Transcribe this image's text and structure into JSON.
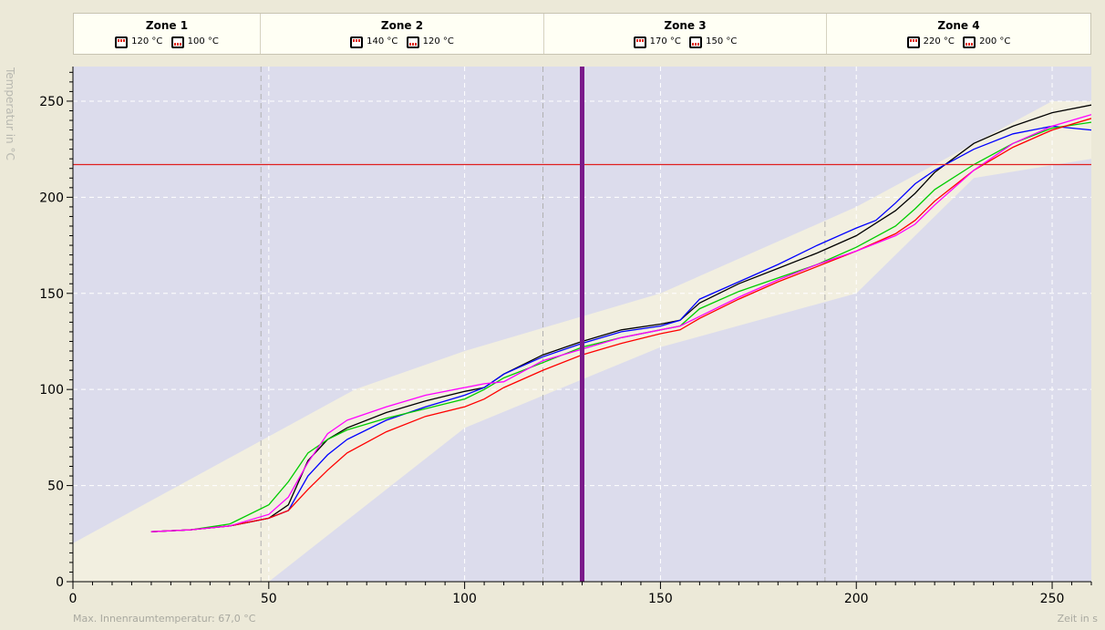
{
  "zones": [
    {
      "title": "Zone 1",
      "top_temp": "120 °C",
      "bottom_temp": "100 °C"
    },
    {
      "title": "Zone 2",
      "top_temp": "140 °C",
      "bottom_temp": "120 °C"
    },
    {
      "title": "Zone 3",
      "top_temp": "170 °C",
      "bottom_temp": "150 °C"
    },
    {
      "title": "Zone 4",
      "top_temp": "220 °C",
      "bottom_temp": "200 °C"
    }
  ],
  "footer": {
    "max_temp_label": "Max. Innenraumtemperatur: 67,0 °C",
    "x_axis_label": "Zeit in s"
  },
  "colors": {
    "plot_background": "#dcdcec",
    "process_window": "#f2efe0",
    "limit_line": "#e02020",
    "cursor": "#7a1a8a"
  },
  "chart_data": {
    "type": "line",
    "xlabel": "Zeit in s",
    "ylabel": "Temperatur in °C",
    "xlim": [
      0,
      260
    ],
    "ylim": [
      0,
      268
    ],
    "x_ticks": [
      0,
      50,
      100,
      150,
      200,
      250
    ],
    "y_ticks": [
      0,
      50,
      100,
      150,
      200,
      250
    ],
    "grid": true,
    "zone_boundaries": [
      48,
      120,
      192
    ],
    "cursor_x": 130,
    "limit_line_y": 217,
    "process_window": {
      "upper": [
        [
          0,
          20
        ],
        [
          72,
          100
        ],
        [
          100,
          120
        ],
        [
          150,
          150
        ],
        [
          200,
          195
        ],
        [
          250,
          250
        ],
        [
          260,
          250
        ]
      ],
      "lower": [
        [
          50,
          0
        ],
        [
          100,
          80
        ],
        [
          150,
          122
        ],
        [
          200,
          150
        ],
        [
          230,
          210
        ],
        [
          260,
          220
        ]
      ]
    },
    "series": [
      {
        "color": "#000000",
        "points": [
          [
            20,
            26
          ],
          [
            30,
            27
          ],
          [
            40,
            29
          ],
          [
            50,
            33
          ],
          [
            55,
            40
          ],
          [
            60,
            63
          ],
          [
            65,
            74
          ],
          [
            70,
            80
          ],
          [
            80,
            88
          ],
          [
            90,
            94
          ],
          [
            100,
            99
          ],
          [
            105,
            101
          ],
          [
            110,
            108
          ],
          [
            120,
            118
          ],
          [
            130,
            125
          ],
          [
            140,
            131
          ],
          [
            150,
            134
          ],
          [
            155,
            136
          ],
          [
            160,
            145
          ],
          [
            170,
            155
          ],
          [
            180,
            163
          ],
          [
            190,
            171
          ],
          [
            200,
            180
          ],
          [
            210,
            193
          ],
          [
            215,
            202
          ],
          [
            220,
            213
          ],
          [
            230,
            228
          ],
          [
            240,
            237
          ],
          [
            250,
            244
          ],
          [
            260,
            248
          ]
        ]
      },
      {
        "color": "#0000ff",
        "points": [
          [
            20,
            26
          ],
          [
            30,
            27
          ],
          [
            40,
            29
          ],
          [
            50,
            33
          ],
          [
            55,
            37
          ],
          [
            60,
            55
          ],
          [
            65,
            66
          ],
          [
            70,
            74
          ],
          [
            80,
            84
          ],
          [
            90,
            91
          ],
          [
            100,
            97
          ],
          [
            105,
            101
          ],
          [
            110,
            108
          ],
          [
            120,
            117
          ],
          [
            130,
            124
          ],
          [
            140,
            130
          ],
          [
            150,
            133
          ],
          [
            155,
            136
          ],
          [
            160,
            147
          ],
          [
            170,
            156
          ],
          [
            180,
            165
          ],
          [
            190,
            175
          ],
          [
            200,
            184
          ],
          [
            205,
            188
          ],
          [
            210,
            197
          ],
          [
            215,
            207
          ],
          [
            220,
            214
          ],
          [
            230,
            225
          ],
          [
            240,
            233
          ],
          [
            250,
            237
          ],
          [
            260,
            235
          ]
        ]
      },
      {
        "color": "#00cc00",
        "points": [
          [
            20,
            26
          ],
          [
            30,
            27
          ],
          [
            40,
            30
          ],
          [
            50,
            40
          ],
          [
            55,
            52
          ],
          [
            60,
            67
          ],
          [
            65,
            74
          ],
          [
            70,
            79
          ],
          [
            80,
            85
          ],
          [
            90,
            90
          ],
          [
            100,
            95
          ],
          [
            105,
            100
          ],
          [
            110,
            106
          ],
          [
            120,
            114
          ],
          [
            130,
            122
          ],
          [
            140,
            127
          ],
          [
            150,
            131
          ],
          [
            155,
            133
          ],
          [
            160,
            142
          ],
          [
            170,
            151
          ],
          [
            180,
            158
          ],
          [
            190,
            165
          ],
          [
            200,
            174
          ],
          [
            210,
            185
          ],
          [
            215,
            194
          ],
          [
            220,
            204
          ],
          [
            230,
            217
          ],
          [
            240,
            228
          ],
          [
            250,
            236
          ],
          [
            260,
            239
          ]
        ]
      },
      {
        "color": "#ff0000",
        "points": [
          [
            20,
            26
          ],
          [
            30,
            27
          ],
          [
            40,
            29
          ],
          [
            50,
            33
          ],
          [
            55,
            37
          ],
          [
            60,
            48
          ],
          [
            65,
            58
          ],
          [
            70,
            67
          ],
          [
            80,
            78
          ],
          [
            90,
            86
          ],
          [
            100,
            91
          ],
          [
            105,
            95
          ],
          [
            110,
            101
          ],
          [
            120,
            110
          ],
          [
            130,
            118
          ],
          [
            140,
            124
          ],
          [
            150,
            129
          ],
          [
            155,
            131
          ],
          [
            160,
            137
          ],
          [
            170,
            147
          ],
          [
            180,
            156
          ],
          [
            190,
            164
          ],
          [
            200,
            172
          ],
          [
            210,
            181
          ],
          [
            215,
            188
          ],
          [
            220,
            198
          ],
          [
            230,
            214
          ],
          [
            240,
            226
          ],
          [
            250,
            235
          ],
          [
            260,
            241
          ]
        ]
      },
      {
        "color": "#ff00ff",
        "points": [
          [
            20,
            26
          ],
          [
            30,
            27
          ],
          [
            40,
            29
          ],
          [
            50,
            35
          ],
          [
            55,
            44
          ],
          [
            60,
            62
          ],
          [
            65,
            77
          ],
          [
            70,
            84
          ],
          [
            80,
            91
          ],
          [
            90,
            97
          ],
          [
            100,
            101
          ],
          [
            105,
            103
          ],
          [
            110,
            104
          ],
          [
            120,
            115
          ],
          [
            130,
            121
          ],
          [
            140,
            127
          ],
          [
            150,
            131
          ],
          [
            155,
            133
          ],
          [
            160,
            138
          ],
          [
            170,
            148
          ],
          [
            180,
            157
          ],
          [
            190,
            165
          ],
          [
            200,
            172
          ],
          [
            210,
            180
          ],
          [
            215,
            186
          ],
          [
            220,
            196
          ],
          [
            230,
            214
          ],
          [
            240,
            228
          ],
          [
            250,
            237
          ],
          [
            260,
            243
          ]
        ]
      }
    ]
  }
}
